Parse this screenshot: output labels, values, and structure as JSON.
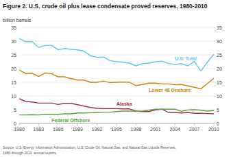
{
  "chart_data": {
    "type": "line",
    "title": "Figure 2. U.S. crude oil plus lease condensate proved reserves, 1980-2010",
    "y_label": "billion barrels",
    "x": [
      1980,
      1981,
      1982,
      1983,
      1984,
      1985,
      1986,
      1987,
      1988,
      1989,
      1990,
      1991,
      1992,
      1993,
      1994,
      1995,
      1996,
      1997,
      1998,
      1999,
      2000,
      2001,
      2002,
      2003,
      2004,
      2005,
      2006,
      2007,
      2008,
      2009,
      2010
    ],
    "series": [
      {
        "name": "U.S. Total",
        "color": "#5bc8f5",
        "values": [
          31.0,
          29.8,
          29.8,
          27.7,
          28.4,
          28.4,
          26.9,
          27.3,
          27.0,
          26.8,
          26.3,
          24.7,
          24.1,
          24.2,
          22.9,
          22.5,
          22.3,
          22.0,
          21.0,
          21.8,
          22.0,
          22.5,
          22.7,
          21.9,
          21.4,
          21.8,
          21.0,
          22.6,
          19.1,
          22.3,
          25.2
        ]
      },
      {
        "name": "Lower 48 Onshore",
        "color": "#c8860a",
        "values": [
          19.5,
          18.2,
          18.3,
          17.1,
          18.4,
          18.1,
          17.0,
          17.0,
          16.3,
          15.8,
          15.8,
          15.0,
          15.0,
          15.4,
          14.9,
          15.0,
          15.1,
          15.0,
          13.8,
          14.2,
          14.7,
          14.7,
          14.4,
          14.4,
          14.1,
          14.2,
          13.7,
          13.2,
          12.6,
          14.5,
          16.5
        ]
      },
      {
        "name": "Alaska",
        "color": "#993344",
        "values": [
          9.0,
          8.0,
          7.8,
          7.4,
          7.4,
          7.4,
          6.9,
          7.3,
          7.3,
          6.8,
          6.3,
          5.8,
          5.5,
          5.4,
          5.4,
          5.4,
          5.3,
          5.3,
          4.5,
          4.3,
          4.3,
          4.9,
          5.2,
          4.0,
          4.0,
          3.8,
          4.0,
          3.7,
          3.7,
          3.6,
          3.5
        ]
      },
      {
        "name": "Federal Offshore",
        "color": "#5a9e3a",
        "values": [
          3.1,
          3.1,
          3.2,
          3.1,
          3.3,
          3.3,
          3.3,
          3.5,
          3.5,
          3.8,
          3.8,
          3.9,
          4.0,
          4.1,
          4.1,
          4.3,
          4.5,
          4.5,
          4.4,
          4.5,
          4.8,
          5.2,
          5.2,
          5.2,
          5.2,
          4.4,
          4.9,
          5.0,
          4.8,
          4.5,
          4.7
        ]
      }
    ],
    "xlim": [
      1980,
      2010
    ],
    "xticks": [
      1980,
      1983,
      1986,
      1989,
      1992,
      1995,
      1998,
      2001,
      2004,
      2007,
      2010
    ],
    "ylim": [
      0,
      35
    ],
    "yticks": [
      0,
      5,
      10,
      15,
      20,
      25,
      30,
      35
    ],
    "y2lim": [
      0,
      35
    ],
    "y2ticks": [
      0,
      5,
      10,
      15,
      20,
      25,
      30,
      35
    ],
    "grid": true,
    "annotations": [
      "Source: U.S. Energy Information Administration, U.S. Crude Oil, Natural Gas, and Natural Gas Liquids Reserves,\n1980 through 2010  annual reports."
    ]
  }
}
